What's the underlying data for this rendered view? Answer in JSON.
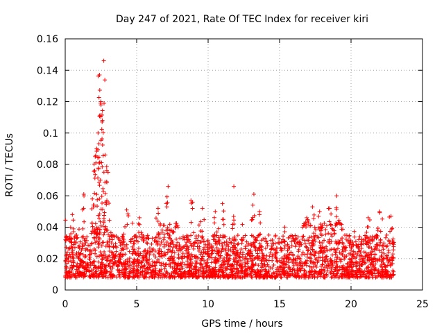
{
  "chart_data": {
    "type": "scatter",
    "title": "Day 247 of 2021, Rate Of TEC Index for receiver kiri",
    "xlabel": "GPS time / hours",
    "ylabel": "ROTI / TECUs",
    "xlim": [
      0,
      25
    ],
    "ylim": [
      0,
      0.16
    ],
    "xticks": [
      0,
      5,
      10,
      15,
      20,
      25
    ],
    "xtick_labels": [
      "0",
      "5",
      "10",
      "15",
      "20",
      "25"
    ],
    "yticks": [
      0,
      0.02,
      0.04,
      0.06,
      0.08,
      0.1,
      0.12,
      0.14,
      0.16
    ],
    "ytick_labels": [
      "0",
      "0.02",
      "0.04",
      "0.06",
      "0.08",
      "0.1",
      "0.12",
      "0.14",
      "0.16"
    ],
    "grid": true,
    "marker": "+",
    "color": "#ff0000",
    "series": [
      {
        "name": "ROTI",
        "band": {
          "x_range": [
            0,
            23
          ],
          "typical_low": 0.008,
          "typical_high": 0.035
        },
        "peaks": [
          {
            "x": 0.5,
            "y": 0.048
          },
          {
            "x": 1.3,
            "y": 0.061
          },
          {
            "x": 1.9,
            "y": 0.058
          },
          {
            "x": 2.1,
            "y": 0.085
          },
          {
            "x": 2.2,
            "y": 0.09
          },
          {
            "x": 2.3,
            "y": 0.1
          },
          {
            "x": 2.4,
            "y": 0.137
          },
          {
            "x": 2.5,
            "y": 0.12
          },
          {
            "x": 2.6,
            "y": 0.108
          },
          {
            "x": 2.7,
            "y": 0.146
          },
          {
            "x": 2.8,
            "y": 0.086
          },
          {
            "x": 3.0,
            "y": 0.075
          },
          {
            "x": 4.3,
            "y": 0.051
          },
          {
            "x": 5.2,
            "y": 0.046
          },
          {
            "x": 6.5,
            "y": 0.052
          },
          {
            "x": 7.2,
            "y": 0.066
          },
          {
            "x": 8.8,
            "y": 0.057
          },
          {
            "x": 9.6,
            "y": 0.052
          },
          {
            "x": 10.5,
            "y": 0.05
          },
          {
            "x": 11.0,
            "y": 0.055
          },
          {
            "x": 11.8,
            "y": 0.066
          },
          {
            "x": 13.2,
            "y": 0.061
          },
          {
            "x": 13.6,
            "y": 0.05
          },
          {
            "x": 16.9,
            "y": 0.046
          },
          {
            "x": 17.3,
            "y": 0.053
          },
          {
            "x": 17.8,
            "y": 0.05
          },
          {
            "x": 18.5,
            "y": 0.052
          },
          {
            "x": 19.0,
            "y": 0.06
          },
          {
            "x": 21.2,
            "y": 0.046
          },
          {
            "x": 22.0,
            "y": 0.05
          },
          {
            "x": 22.8,
            "y": 0.047
          }
        ]
      }
    ]
  }
}
